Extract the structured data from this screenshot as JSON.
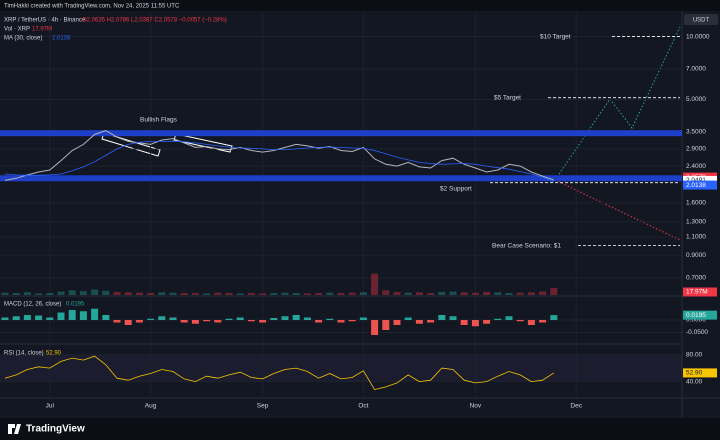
{
  "header": {
    "credit": "TimHakki created with TradingView.com, Nov 24, 2025 11:55 UTC",
    "currency": "USDT",
    "footer": "TradingView"
  },
  "chart_data": [
    {
      "type": "line",
      "log_scale": true,
      "ohlc": "O2.0635 H2.0786 L2.0387 C2.0578 −0.0057 (−0.28%)",
      "categories": [
        null,
        null,
        null,
        null,
        "Jul",
        null,
        null,
        null,
        null,
        null,
        null,
        null,
        null,
        "Aug",
        null,
        null,
        null,
        null,
        null,
        null,
        null,
        null,
        null,
        "Sep",
        null,
        null,
        null,
        null,
        null,
        null,
        null,
        null,
        "Oct",
        null,
        null,
        null,
        null,
        null,
        null,
        null,
        null,
        null,
        "Nov",
        null,
        null,
        null,
        null,
        null,
        null,
        null,
        null,
        "Dec",
        null,
        null
      ],
      "series": [
        {
          "name": "XRP / TetherUS · 4h · Binance",
          "color": "#b2b5be",
          "values": [
            2.05,
            2.1,
            2.18,
            2.25,
            2.3,
            2.55,
            2.85,
            3.05,
            3.4,
            3.55,
            3.3,
            3.15,
            3.1,
            3.05,
            3.2,
            3.25,
            3.1,
            2.95,
            2.98,
            2.9,
            2.88,
            2.95,
            2.85,
            2.8,
            2.85,
            2.95,
            3.05,
            3.0,
            2.92,
            2.98,
            2.85,
            2.82,
            2.95,
            2.6,
            2.45,
            2.4,
            2.5,
            2.38,
            2.35,
            2.55,
            2.62,
            2.45,
            2.35,
            2.25,
            2.3,
            2.45,
            2.4,
            2.25,
            2.15,
            2.06,
            null,
            null,
            null,
            null
          ]
        },
        {
          "name": "MA (30, close)",
          "color": "#2962ff",
          "values": [
            2.2,
            2.18,
            2.17,
            2.17,
            2.18,
            2.2,
            2.28,
            2.38,
            2.52,
            2.7,
            2.9,
            3.05,
            3.12,
            3.15,
            3.15,
            3.16,
            3.14,
            3.1,
            3.05,
            3.0,
            2.96,
            2.93,
            2.92,
            2.9,
            2.88,
            2.88,
            2.9,
            2.93,
            2.95,
            2.96,
            2.95,
            2.93,
            2.92,
            2.85,
            2.75,
            2.65,
            2.57,
            2.5,
            2.47,
            2.45,
            2.46,
            2.47,
            2.45,
            2.4,
            2.36,
            2.32,
            2.26,
            2.2,
            2.12,
            2.0138,
            null,
            null,
            null,
            null
          ]
        }
      ],
      "ylim": [
        0.6,
        12
      ],
      "yticks": [
        {
          "value": 10,
          "label": "10.0000"
        },
        {
          "value": 7,
          "label": "7.0000"
        },
        {
          "value": 5,
          "label": "5.0000"
        },
        {
          "value": 3.5,
          "label": "3.5000"
        },
        {
          "value": 2.9,
          "label": "2.9000"
        },
        {
          "value": 2.4,
          "label": "2.4000"
        },
        {
          "value": 1.6,
          "label": "1.6000"
        },
        {
          "value": 1.3,
          "label": "1.3000"
        },
        {
          "value": 1.1,
          "label": "1.1000"
        },
        {
          "value": 0.9,
          "label": "0.9000"
        },
        {
          "value": 0.7,
          "label": "0.7000"
        }
      ],
      "levels": [
        {
          "value": 3.45,
          "color": "#1e3fc8"
        },
        {
          "value": 2.1,
          "color": "#1e3fc8"
        }
      ],
      "annotations": [
        {
          "text": "$10 Target",
          "value": 10
        },
        {
          "text": "$5 Target",
          "value": 5.1
        },
        {
          "text": "$2 Support",
          "value": 2.0
        },
        {
          "text": "Bear Case Scenario: $1",
          "value": 1.0
        },
        {
          "text": "Bullish Flags"
        }
      ],
      "price_labels": [
        {
          "value": 2.0578,
          "color": "#f23645"
        },
        {
          "value": 2.0491,
          "color": "#ffffff"
        },
        {
          "value": 2.0138,
          "color": "#2962ff"
        }
      ]
    },
    {
      "type": "bar",
      "name": "Vol · XRP",
      "last_label": "17.97M",
      "color": "#f23645",
      "values": [
        6,
        5,
        7,
        4,
        5,
        9,
        12,
        10,
        14,
        11,
        8,
        7,
        6,
        5,
        7,
        6,
        5,
        5,
        4,
        6,
        5,
        4,
        5,
        4,
        5,
        6,
        5,
        4,
        5,
        6,
        5,
        6,
        7,
        55,
        12,
        8,
        6,
        7,
        5,
        8,
        9,
        7,
        6,
        8,
        7,
        5,
        6,
        7,
        9,
        17.97,
        null,
        null,
        null,
        null
      ],
      "ylim": [
        0,
        90
      ]
    },
    {
      "type": "bar",
      "name": "MACD (12, 26, close)",
      "color": "#26a69a",
      "values": [
        0.01,
        0.015,
        0.02,
        0.018,
        0.01,
        0.03,
        0.04,
        0.035,
        0.045,
        0.02,
        -0.01,
        -0.02,
        -0.01,
        0.005,
        0.015,
        0.01,
        -0.01,
        -0.015,
        -0.005,
        -0.01,
        0.005,
        0.01,
        -0.005,
        -0.01,
        0.008,
        0.015,
        0.02,
        0.01,
        -0.01,
        0.005,
        -0.01,
        -0.005,
        0.01,
        -0.06,
        -0.04,
        -0.02,
        0.01,
        -0.015,
        -0.01,
        0.02,
        0.015,
        -0.02,
        -0.025,
        -0.015,
        0.005,
        0.015,
        -0.005,
        -0.02,
        -0.01,
        0.0195,
        null,
        null,
        null,
        null
      ],
      "ylim": [
        -0.08,
        0.08
      ],
      "yticks": [
        {
          "value": 0,
          "label": "0.0000"
        },
        {
          "value": -0.05,
          "label": "-0.0500"
        }
      ]
    },
    {
      "type": "line",
      "name": "RSI (14, close)",
      "last_label": "52.90",
      "color": "#f7c600",
      "values": [
        45,
        50,
        58,
        62,
        60,
        70,
        75,
        72,
        78,
        65,
        45,
        42,
        48,
        52,
        58,
        55,
        44,
        40,
        48,
        45,
        50,
        54,
        46,
        44,
        52,
        58,
        60,
        55,
        45,
        52,
        44,
        46,
        56,
        28,
        32,
        38,
        50,
        40,
        42,
        60,
        58,
        42,
        38,
        40,
        48,
        55,
        50,
        40,
        42,
        52.9,
        null,
        null,
        null,
        null
      ],
      "ylim": [
        20,
        90
      ],
      "yticks": [
        {
          "value": 80,
          "label": "80.00"
        },
        {
          "value": 40,
          "label": "40.00"
        }
      ]
    }
  ]
}
